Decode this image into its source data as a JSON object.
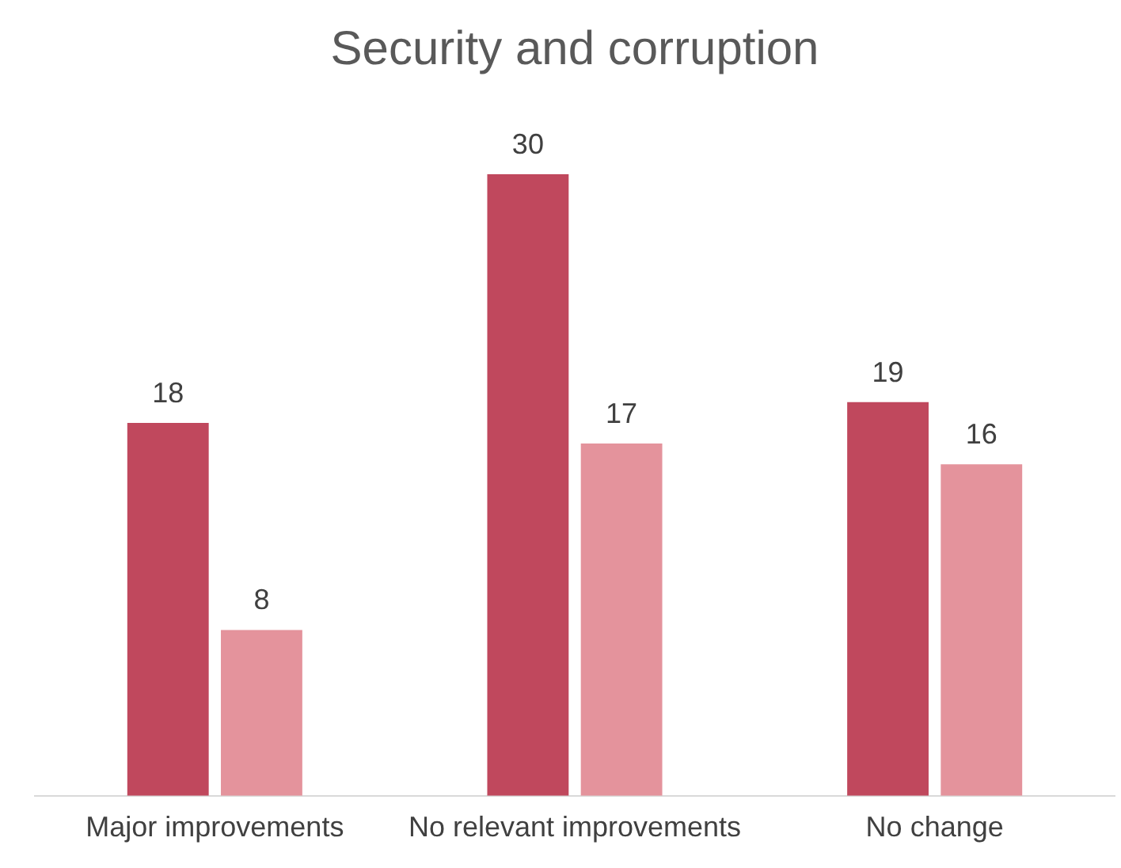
{
  "chart_data": {
    "type": "bar",
    "title": "Security and corruption",
    "categories": [
      "Major improvements",
      "No relevant improvements",
      "No change"
    ],
    "series": [
      {
        "color": "#c0485d",
        "values": [
          18,
          30,
          19
        ]
      },
      {
        "color": "#e4939c",
        "values": [
          8,
          17,
          16
        ]
      }
    ],
    "data_labels": true,
    "grid": false,
    "legend": false
  }
}
